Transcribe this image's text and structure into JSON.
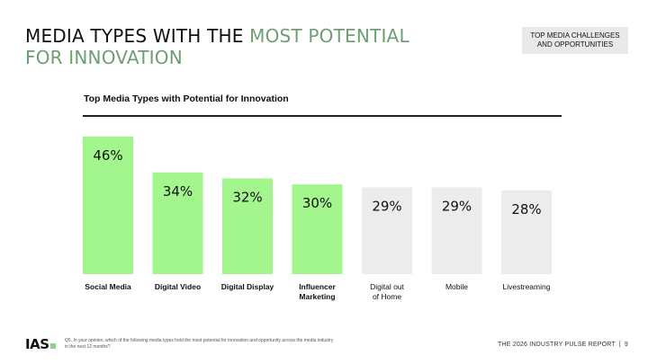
{
  "page": {
    "title_main": "MEDIA TYPES WITH THE",
    "title_highlight_1": "MOST POTENTIAL",
    "title_highlight_2": "FOR INNOVATION",
    "section_tag": "TOP MEDIA CHALLENGES AND OPPORTUNITIES",
    "footnote": "Q5. In your opinion, which of the following media types hold the most potential for innovation and opportunity across the media industry in the next 12 months?",
    "logo_text": "IAS",
    "report_name": "THE 2026 INDUSTRY PULSE REPORT",
    "separator": "|",
    "page_number": "9"
  },
  "colors": {
    "highlight": "#6f9e73",
    "bar_highlight": "#a3f58d",
    "bar_other": "#ececec"
  },
  "chart_data": {
    "type": "bar",
    "title": "Top Media Types with Potential for Innovation",
    "categories": [
      [
        "Social Media"
      ],
      [
        "Digital Video"
      ],
      [
        "Digital Display"
      ],
      [
        "Influencer",
        "Marketing"
      ],
      [
        "Digital out",
        "of Home"
      ],
      [
        "Mobile"
      ],
      [
        "Livestreaming"
      ]
    ],
    "values": [
      46,
      34,
      32,
      30,
      29,
      29,
      28
    ],
    "value_labels": [
      "46%",
      "34%",
      "32%",
      "30%",
      "29%",
      "29%",
      "28%"
    ],
    "highlighted": [
      true,
      true,
      true,
      true,
      false,
      false,
      false
    ],
    "bold_labels": [
      true,
      true,
      true,
      true,
      false,
      false,
      false
    ],
    "unit": "%",
    "xlabel": "",
    "ylabel": "",
    "grid": false
  }
}
